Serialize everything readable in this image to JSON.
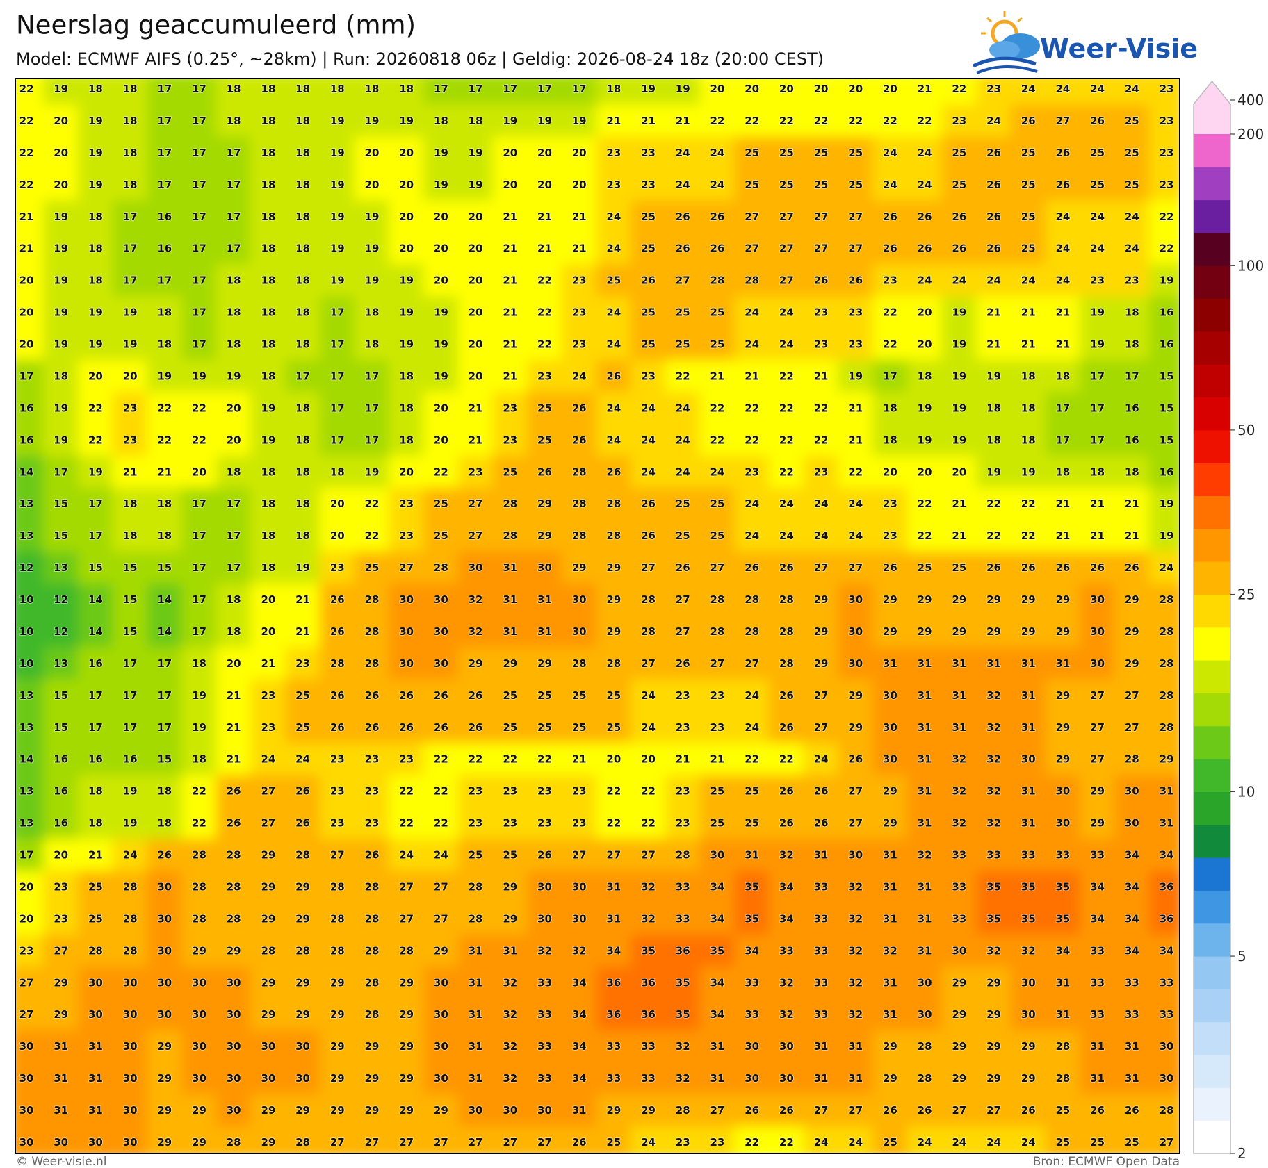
{
  "header": {
    "title": "Neerslag geaccumuleerd (mm)",
    "subtitle": "Model: ECMWF AIFS (0.25°, ~28km)  |  Run: 20260818 06z  |  Geldig: 2026-08-24 18z (20:00 CEST)"
  },
  "logo": {
    "text": "Weer-Visie"
  },
  "map": {
    "rows": [
      [
        22,
        19,
        18,
        18,
        17,
        17,
        18,
        18,
        18,
        18,
        18,
        18,
        17,
        17,
        17,
        17,
        17,
        18,
        19,
        19,
        20,
        20,
        20,
        20,
        20,
        20,
        21,
        22,
        23,
        24,
        24,
        24,
        24,
        23
      ],
      [
        22,
        20,
        19,
        18,
        17,
        17,
        18,
        18,
        18,
        19,
        19,
        19,
        18,
        18,
        19,
        19,
        19,
        21,
        21,
        21,
        22,
        22,
        22,
        22,
        22,
        22,
        22,
        23,
        24,
        26,
        27,
        26,
        25,
        23
      ],
      [
        22,
        20,
        19,
        18,
        17,
        17,
        17,
        18,
        18,
        19,
        20,
        20,
        19,
        19,
        20,
        20,
        20,
        23,
        23,
        24,
        24,
        25,
        25,
        25,
        25,
        24,
        24,
        25,
        26,
        25,
        26,
        25,
        25,
        23
      ],
      [
        22,
        20,
        19,
        18,
        17,
        17,
        17,
        18,
        18,
        19,
        20,
        20,
        19,
        19,
        20,
        20,
        20,
        23,
        23,
        24,
        24,
        25,
        25,
        25,
        25,
        24,
        24,
        25,
        26,
        25,
        26,
        25,
        25,
        23
      ],
      [
        21,
        19,
        18,
        17,
        16,
        17,
        17,
        18,
        18,
        19,
        19,
        20,
        20,
        20,
        21,
        21,
        21,
        24,
        25,
        26,
        26,
        27,
        27,
        27,
        27,
        26,
        26,
        26,
        26,
        25,
        24,
        24,
        24,
        22
      ],
      [
        21,
        19,
        18,
        17,
        16,
        17,
        17,
        18,
        18,
        19,
        19,
        20,
        20,
        20,
        21,
        21,
        21,
        24,
        25,
        26,
        26,
        27,
        27,
        27,
        27,
        26,
        26,
        26,
        26,
        25,
        24,
        24,
        24,
        22
      ],
      [
        20,
        19,
        18,
        17,
        17,
        17,
        18,
        18,
        18,
        19,
        19,
        19,
        20,
        20,
        21,
        22,
        23,
        25,
        26,
        27,
        28,
        28,
        27,
        26,
        26,
        23,
        24,
        24,
        24,
        24,
        24,
        23,
        23,
        19
      ],
      [
        20,
        19,
        19,
        19,
        18,
        17,
        18,
        18,
        18,
        17,
        18,
        19,
        19,
        20,
        21,
        22,
        23,
        24,
        25,
        25,
        25,
        24,
        24,
        23,
        23,
        22,
        20,
        19,
        21,
        21,
        21,
        19,
        18,
        16
      ],
      [
        20,
        19,
        19,
        19,
        18,
        17,
        18,
        18,
        18,
        17,
        18,
        19,
        19,
        20,
        21,
        22,
        23,
        24,
        25,
        25,
        25,
        24,
        24,
        23,
        23,
        22,
        20,
        19,
        21,
        21,
        21,
        19,
        18,
        16
      ],
      [
        17,
        18,
        20,
        20,
        19,
        19,
        19,
        18,
        17,
        17,
        17,
        18,
        19,
        20,
        21,
        23,
        24,
        26,
        23,
        22,
        21,
        21,
        22,
        21,
        19,
        17,
        18,
        19,
        19,
        18,
        18,
        17,
        17,
        15
      ],
      [
        16,
        19,
        22,
        23,
        22,
        22,
        20,
        19,
        18,
        17,
        17,
        18,
        20,
        21,
        23,
        25,
        26,
        24,
        24,
        24,
        22,
        22,
        22,
        22,
        21,
        18,
        19,
        19,
        18,
        18,
        17,
        17,
        16,
        15
      ],
      [
        16,
        19,
        22,
        23,
        22,
        22,
        20,
        19,
        18,
        17,
        17,
        18,
        20,
        21,
        23,
        25,
        26,
        24,
        24,
        24,
        22,
        22,
        22,
        22,
        21,
        18,
        19,
        19,
        18,
        18,
        17,
        17,
        16,
        15
      ],
      [
        14,
        17,
        19,
        21,
        21,
        20,
        18,
        18,
        18,
        18,
        19,
        20,
        22,
        23,
        25,
        26,
        28,
        26,
        24,
        24,
        24,
        23,
        22,
        23,
        22,
        20,
        20,
        20,
        19,
        19,
        18,
        18,
        18,
        16
      ],
      [
        13,
        15,
        17,
        18,
        18,
        17,
        17,
        18,
        18,
        20,
        22,
        23,
        25,
        27,
        28,
        29,
        28,
        28,
        26,
        25,
        25,
        24,
        24,
        24,
        24,
        23,
        22,
        21,
        22,
        22,
        21,
        21,
        21,
        19
      ],
      [
        13,
        15,
        17,
        18,
        18,
        17,
        17,
        18,
        18,
        20,
        22,
        23,
        25,
        27,
        28,
        29,
        28,
        28,
        26,
        25,
        25,
        24,
        24,
        24,
        24,
        23,
        22,
        21,
        22,
        22,
        21,
        21,
        21,
        19
      ],
      [
        12,
        13,
        15,
        15,
        15,
        17,
        17,
        18,
        19,
        23,
        25,
        27,
        28,
        30,
        31,
        30,
        29,
        29,
        27,
        26,
        27,
        26,
        26,
        27,
        27,
        26,
        25,
        25,
        26,
        26,
        26,
        26,
        26,
        24
      ],
      [
        10,
        12,
        14,
        15,
        14,
        17,
        18,
        20,
        21,
        26,
        28,
        30,
        30,
        32,
        31,
        31,
        30,
        29,
        28,
        27,
        28,
        28,
        28,
        29,
        30,
        29,
        29,
        29,
        29,
        29,
        29,
        30,
        29,
        28
      ],
      [
        10,
        12,
        14,
        15,
        14,
        17,
        18,
        20,
        21,
        26,
        28,
        30,
        30,
        32,
        31,
        31,
        30,
        29,
        28,
        27,
        28,
        28,
        28,
        29,
        30,
        29,
        29,
        29,
        29,
        29,
        29,
        30,
        29,
        28
      ],
      [
        10,
        13,
        16,
        17,
        17,
        18,
        20,
        21,
        23,
        28,
        28,
        30,
        30,
        29,
        29,
        29,
        28,
        28,
        27,
        26,
        27,
        27,
        28,
        29,
        30,
        31,
        31,
        31,
        31,
        31,
        31,
        30,
        29,
        28
      ],
      [
        13,
        15,
        17,
        17,
        17,
        19,
        21,
        23,
        25,
        26,
        26,
        26,
        26,
        26,
        25,
        25,
        25,
        25,
        24,
        23,
        23,
        24,
        26,
        27,
        29,
        30,
        31,
        31,
        32,
        31,
        29,
        27,
        27,
        28
      ],
      [
        13,
        15,
        17,
        17,
        17,
        19,
        21,
        23,
        25,
        26,
        26,
        26,
        26,
        26,
        25,
        25,
        25,
        25,
        24,
        23,
        23,
        24,
        26,
        27,
        29,
        30,
        31,
        31,
        32,
        31,
        29,
        27,
        27,
        28
      ],
      [
        14,
        16,
        16,
        16,
        15,
        18,
        21,
        24,
        24,
        23,
        23,
        23,
        22,
        22,
        22,
        22,
        21,
        20,
        20,
        21,
        21,
        22,
        22,
        24,
        26,
        30,
        31,
        32,
        32,
        30,
        29,
        27,
        28,
        29
      ],
      [
        13,
        16,
        18,
        19,
        18,
        22,
        26,
        27,
        26,
        23,
        23,
        22,
        22,
        23,
        23,
        23,
        23,
        22,
        22,
        23,
        25,
        25,
        26,
        26,
        27,
        29,
        31,
        32,
        32,
        31,
        30,
        29,
        30,
        31
      ],
      [
        13,
        16,
        18,
        19,
        18,
        22,
        26,
        27,
        26,
        23,
        23,
        22,
        22,
        23,
        23,
        23,
        23,
        22,
        22,
        23,
        25,
        25,
        26,
        26,
        27,
        29,
        31,
        32,
        32,
        31,
        30,
        29,
        30,
        31
      ],
      [
        17,
        20,
        21,
        24,
        26,
        28,
        28,
        29,
        28,
        27,
        26,
        24,
        24,
        25,
        25,
        26,
        27,
        27,
        27,
        28,
        30,
        31,
        32,
        31,
        30,
        31,
        32,
        33,
        33,
        33,
        33,
        33,
        34,
        34
      ],
      [
        20,
        23,
        25,
        28,
        30,
        28,
        28,
        29,
        29,
        28,
        28,
        27,
        27,
        28,
        29,
        30,
        30,
        31,
        32,
        33,
        34,
        35,
        34,
        33,
        32,
        31,
        31,
        33,
        35,
        35,
        35,
        34,
        34,
        36
      ],
      [
        20,
        23,
        25,
        28,
        30,
        28,
        28,
        29,
        29,
        28,
        28,
        27,
        27,
        28,
        29,
        30,
        30,
        31,
        32,
        33,
        34,
        35,
        34,
        33,
        32,
        31,
        31,
        33,
        35,
        35,
        35,
        34,
        34,
        36
      ],
      [
        23,
        27,
        28,
        28,
        30,
        29,
        29,
        28,
        28,
        28,
        28,
        28,
        29,
        31,
        31,
        32,
        32,
        34,
        35,
        36,
        35,
        34,
        33,
        33,
        32,
        32,
        31,
        30,
        32,
        32,
        34,
        33,
        34,
        34
      ],
      [
        27,
        29,
        30,
        30,
        30,
        30,
        30,
        29,
        29,
        29,
        28,
        29,
        30,
        31,
        32,
        33,
        34,
        36,
        36,
        35,
        34,
        33,
        32,
        33,
        32,
        31,
        30,
        29,
        29,
        30,
        31,
        33,
        33,
        33
      ],
      [
        27,
        29,
        30,
        30,
        30,
        30,
        30,
        29,
        29,
        29,
        28,
        29,
        30,
        31,
        32,
        33,
        34,
        36,
        36,
        35,
        34,
        33,
        32,
        33,
        32,
        31,
        30,
        29,
        29,
        30,
        31,
        33,
        33,
        33
      ],
      [
        30,
        31,
        31,
        30,
        29,
        30,
        30,
        30,
        30,
        29,
        29,
        29,
        30,
        31,
        32,
        33,
        34,
        33,
        33,
        32,
        31,
        30,
        30,
        31,
        31,
        29,
        28,
        29,
        29,
        29,
        28,
        31,
        31,
        30
      ],
      [
        30,
        31,
        31,
        30,
        29,
        30,
        30,
        30,
        30,
        29,
        29,
        29,
        30,
        31,
        32,
        33,
        34,
        33,
        33,
        32,
        31,
        30,
        30,
        31,
        31,
        29,
        28,
        29,
        29,
        29,
        28,
        31,
        31,
        30
      ],
      [
        30,
        31,
        31,
        30,
        29,
        29,
        30,
        29,
        29,
        29,
        29,
        29,
        29,
        30,
        30,
        30,
        31,
        29,
        29,
        28,
        27,
        26,
        26,
        27,
        27,
        26,
        26,
        27,
        27,
        26,
        25,
        26,
        26,
        28
      ],
      [
        30,
        30,
        30,
        30,
        29,
        29,
        28,
        29,
        28,
        27,
        27,
        27,
        27,
        27,
        27,
        27,
        26,
        25,
        24,
        23,
        23,
        22,
        22,
        24,
        24,
        25,
        24,
        24,
        24,
        24,
        25,
        25,
        25,
        27
      ]
    ]
  },
  "colorbar": {
    "levels": [
      2,
      2.5,
      3,
      3.5,
      4,
      4.5,
      5,
      6,
      7,
      8,
      9,
      10,
      12.5,
      15,
      17.5,
      20,
      22.5,
      25,
      30,
      35,
      40,
      45,
      50,
      60,
      70,
      80,
      90,
      100,
      125,
      150,
      175,
      200
    ],
    "colors": [
      "#ffffff",
      "#eaf3fd",
      "#d6e9fb",
      "#c2def9",
      "#a9d1f6",
      "#94c8f2",
      "#6db3ec",
      "#3f96e3",
      "#1b75d2",
      "#128a3c",
      "#2aa52a",
      "#40b82a",
      "#6cc918",
      "#a4da06",
      "#cde800",
      "#ffff00",
      "#ffd900",
      "#ffb400",
      "#ff9600",
      "#ff7200",
      "#ff3d00",
      "#ee1100",
      "#d90000",
      "#c00000",
      "#a60000",
      "#8c0000",
      "#720010",
      "#580020",
      "#6a1ea0",
      "#a040c0",
      "#ee66cc"
    ],
    "extend_color": "#ffd6f2",
    "ticks": [
      400,
      200,
      100,
      50,
      25,
      10,
      5,
      2
    ]
  },
  "footer": {
    "credit": "© Weer-visie.nl",
    "source": "Bron: ECMWF Open Data"
  }
}
